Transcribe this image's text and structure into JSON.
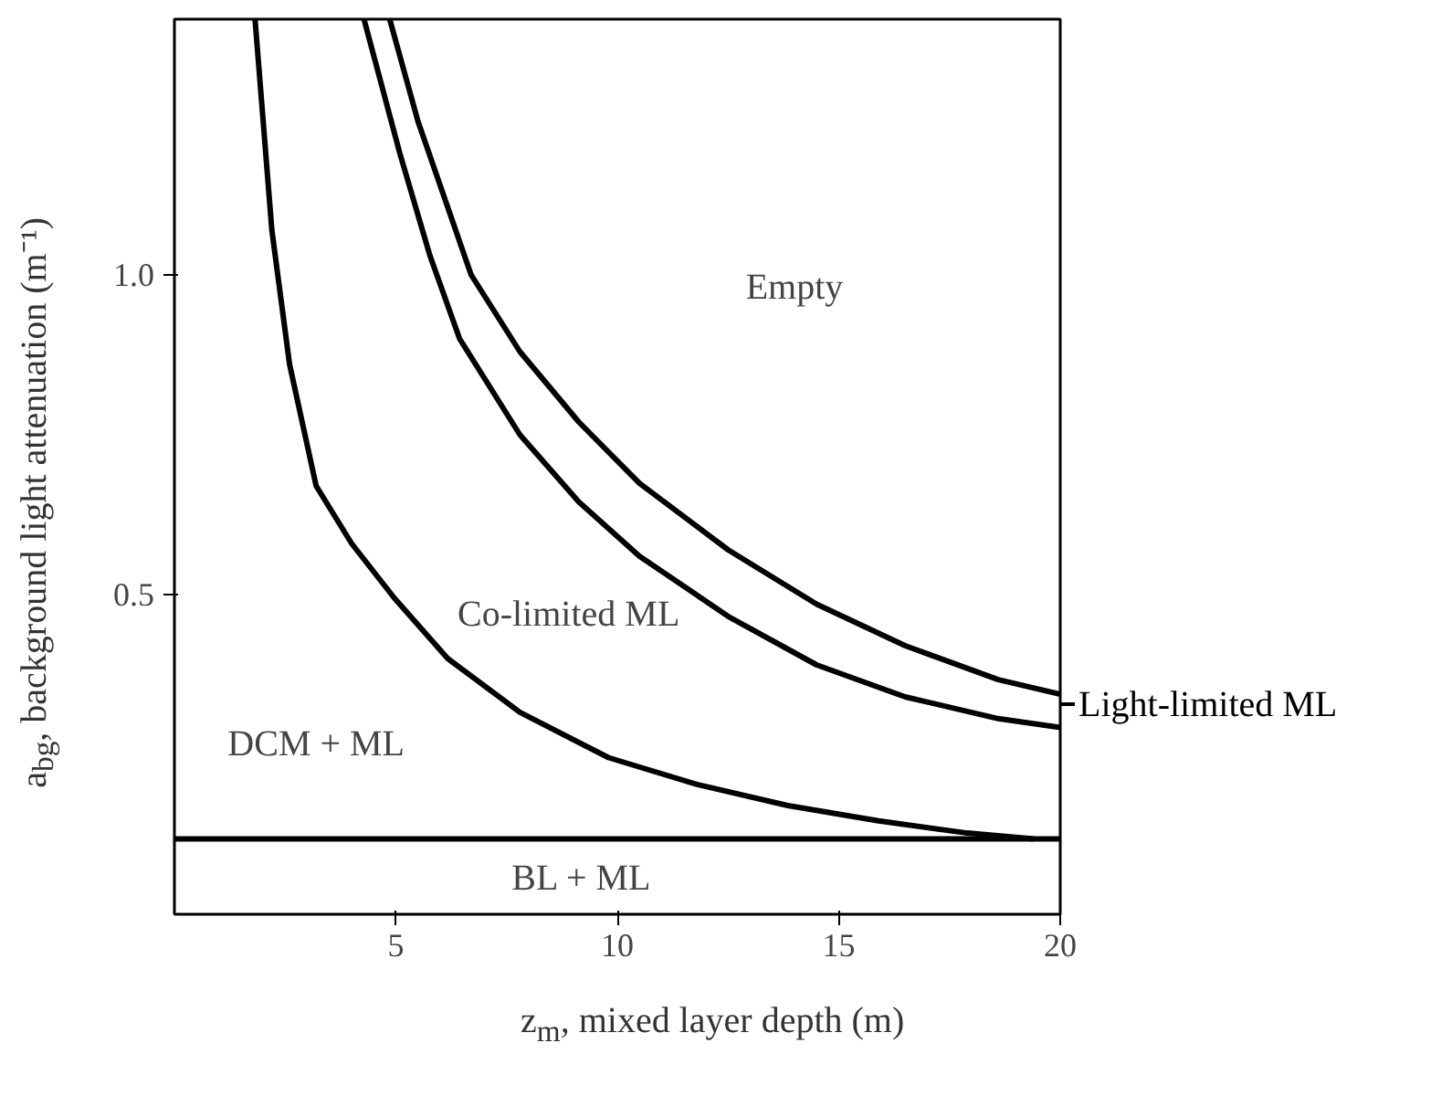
{
  "chart_data": {
    "type": "line",
    "xlabel": "z$_{m}$, mixed layer depth (m)",
    "ylabel": "a$_{bg}$, background light attenuation (m⁻¹)",
    "xlim": [
      0,
      20
    ],
    "ylim": [
      0,
      1.4
    ],
    "xticks": [
      5,
      10,
      15,
      20
    ],
    "yticks": [
      0.5,
      {
        "value": 1.0,
        "label": "1.0"
      }
    ],
    "grid": false,
    "marker": "none",
    "line_style": "solid",
    "series": [
      {
        "color": "#000000",
        "x": [
          1.82,
          2.2,
          2.6,
          3.2,
          4.0,
          4.96,
          6.17,
          7.8,
          9.8,
          11.8,
          13.85,
          15.9,
          17.9,
          19.4
        ],
        "values": [
          1.4,
          1.07,
          0.86,
          0.67,
          0.58,
          0.495,
          0.4,
          0.316,
          0.245,
          0.203,
          0.17,
          0.146,
          0.127,
          0.118
        ]
      },
      {
        "color": "#000000",
        "x": [
          4.28,
          5.09,
          5.77,
          6.44,
          7.8,
          9.13,
          10.5,
          12.5,
          14.5,
          16.5,
          18.6,
          20.0
        ],
        "values": [
          1.4,
          1.19,
          1.03,
          0.9,
          0.75,
          0.645,
          0.56,
          0.466,
          0.39,
          0.34,
          0.306,
          0.292
        ]
      },
      {
        "color": "#000000",
        "x": [
          4.86,
          5.5,
          6.7,
          7.8,
          9.13,
          10.5,
          12.5,
          14.5,
          16.5,
          18.6,
          20.0
        ],
        "values": [
          1.4,
          1.24,
          1.0,
          0.88,
          0.77,
          0.674,
          0.57,
          0.485,
          0.42,
          0.367,
          0.344
        ]
      }
    ],
    "ref_lines": [
      {
        "axis": "y",
        "value": 0.118,
        "color": "#000000"
      }
    ],
    "annotations": [
      "Empty",
      "Co-limited ML",
      "DCM + ML",
      "BL + ML",
      "Light-limited ML"
    ]
  }
}
